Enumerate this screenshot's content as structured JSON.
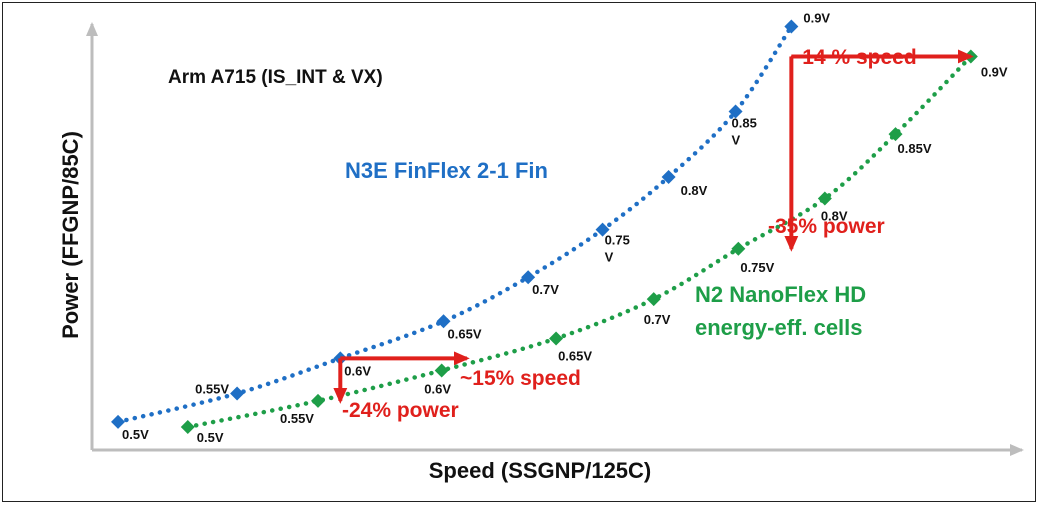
{
  "chart_data": {
    "type": "line",
    "title": "Arm A715  (IS_INT & VX)",
    "xlabel": "Speed (SSGNP/125C)",
    "ylabel": "Power (FFGNP/85C)",
    "xlim": [
      0,
      100
    ],
    "ylim": [
      0,
      100
    ],
    "colors": {
      "n3e": "#1f6fc5",
      "n2": "#1e9e48",
      "arrow": "#e0201c",
      "axis": "#bdbdbd"
    },
    "series": [
      {
        "name": "N3E FinFlex 2-1 Fin",
        "labels": [
          "0.5V",
          "0.55V",
          "0.6V",
          "0.65V",
          "0.7V",
          "0.75 V",
          "0.8V",
          "0.85 V",
          "0.9V"
        ],
        "x": [
          2.8,
          15.6,
          26.7,
          37.8,
          46.9,
          54.9,
          62.0,
          69.2,
          75.2
        ],
        "y": [
          7.2,
          14.5,
          23.5,
          33.0,
          44.3,
          56.5,
          70.0,
          86.8,
          108.6
        ]
      },
      {
        "name": "N2 NanoFlex HD energy-eff. cells",
        "name_lines": [
          "N2 NanoFlex HD",
          "energy-eff. cells"
        ],
        "labels": [
          "0.5V",
          "0.55V",
          "0.6V",
          "0.65V",
          "0.7V",
          "0.75V",
          "0.8V",
          "0.85V",
          "0.9V"
        ],
        "x": [
          10.3,
          24.3,
          37.6,
          49.9,
          60.4,
          69.5,
          78.8,
          86.4,
          94.5
        ],
        "y": [
          5.9,
          12.6,
          20.4,
          28.6,
          38.7,
          51.6,
          64.5,
          81.0,
          100.9
        ]
      }
    ],
    "annotations": [
      {
        "text": "~15% speed",
        "from": [
          26.7,
          23.5
        ],
        "to": [
          40.3,
          23.5
        ]
      },
      {
        "text": "-24% power",
        "from": [
          26.7,
          23.5
        ],
        "to": [
          26.7,
          12.6
        ]
      },
      {
        "text": "~14 % speed",
        "from": [
          75.2,
          100.9
        ],
        "to": [
          94.5,
          100.9
        ]
      },
      {
        "text": "-35% power",
        "from": [
          75.2,
          100.9
        ],
        "to": [
          75.2,
          51.6
        ]
      }
    ]
  }
}
